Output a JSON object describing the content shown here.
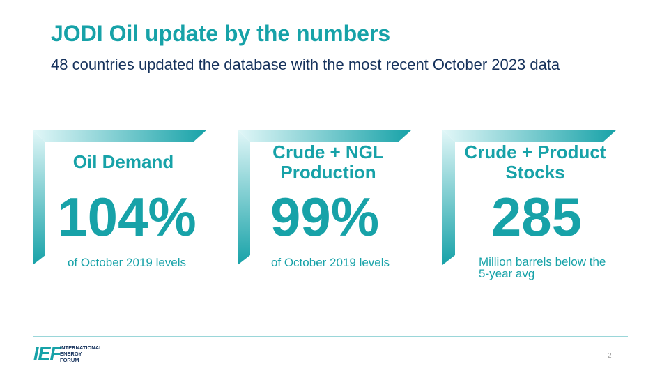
{
  "slide": {
    "title": "JODI Oil update by the numbers",
    "subtitle": "48 countries updated the database with the most recent October 2023 data",
    "page_number": "2"
  },
  "cards": [
    {
      "title": "Oil Demand",
      "value": "104%",
      "note": "of October 2019 levels"
    },
    {
      "title": "Crude + NGL Production",
      "value": "99%",
      "note": "of October 2019 levels"
    },
    {
      "title": "Crude + Product Stocks",
      "value": "285",
      "note": "Million barrels below the 5-year avg"
    }
  ],
  "logo": {
    "mark": "IEF",
    "line1": "INTERNATIONAL",
    "line2": "ENERGY",
    "line3": "FORUM"
  },
  "colors": {
    "accent": "#17a2a8",
    "navy": "#16325c",
    "frame_light": "#e2f7f8"
  }
}
